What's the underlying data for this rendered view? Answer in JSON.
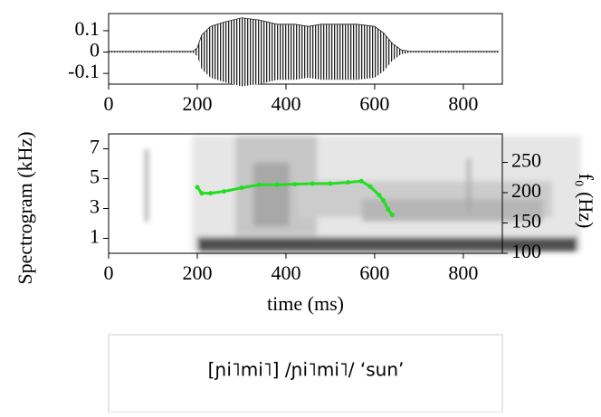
{
  "chart_data": [
    {
      "type": "waveform",
      "x": [
        0,
        190,
        200,
        210,
        230,
        260,
        300,
        340,
        380,
        420,
        450,
        480,
        520,
        560,
        600,
        620,
        640,
        660,
        680,
        880
      ],
      "values": [
        0.003,
        0.003,
        0.02,
        0.08,
        0.12,
        0.14,
        0.16,
        0.15,
        0.13,
        0.13,
        0.12,
        0.13,
        0.13,
        0.13,
        0.12,
        0.09,
        0.04,
        0.01,
        0.003,
        0.003
      ],
      "color": "#222222",
      "xlim": [
        0,
        888
      ],
      "xticks": [
        0,
        200,
        400,
        600,
        800
      ],
      "ylim": [
        -0.15,
        0.18
      ],
      "yticks": [
        0.1,
        0,
        -0.1
      ]
    },
    {
      "type": "spectrogram",
      "x_label": "time (ms)",
      "y_label": "Spectrogram (kHz)",
      "y2_label": "f₀ (Hz)",
      "xlim": [
        0,
        888
      ],
      "xticks": [
        0,
        200,
        400,
        600,
        800
      ],
      "ylim": [
        0,
        8
      ],
      "yticks": [
        1,
        3,
        5,
        7
      ],
      "y2lim": [
        100,
        297
      ],
      "y2ticks": [
        100,
        150,
        200,
        250
      ],
      "f0": {
        "color": "#22dd22",
        "axis": "y2",
        "x": [
          200,
          210,
          230,
          260,
          300,
          340,
          380,
          420,
          460,
          500,
          540,
          570,
          590,
          610,
          620,
          630,
          640
        ],
        "values": [
          209,
          199,
          199,
          202,
          208,
          213,
          213,
          214,
          215,
          215,
          217,
          219,
          210,
          196,
          187,
          173,
          163
        ]
      }
    }
  ],
  "caption": {
    "text": "[ɲi˥mi˥] /ɲi˥mi˥/ ‘sun’"
  }
}
